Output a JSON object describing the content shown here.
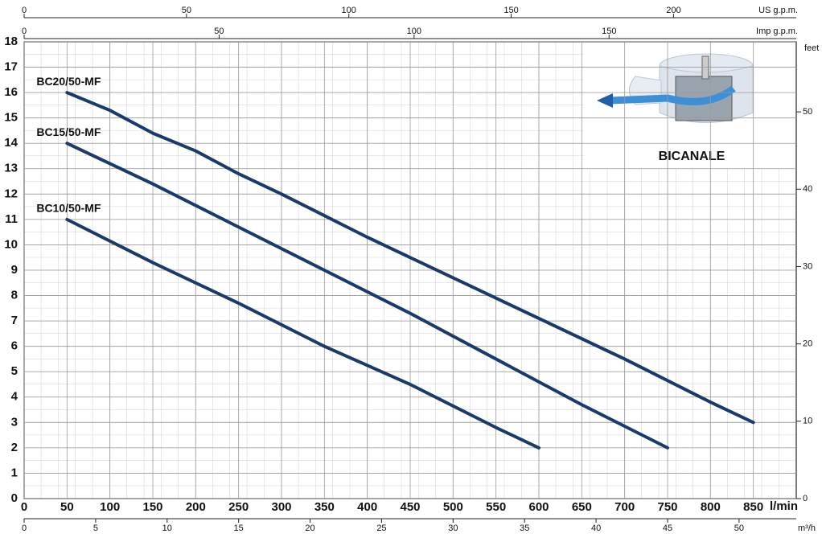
{
  "chart_data": {
    "type": "line",
    "xlabel": "l/min",
    "xlim": [
      0,
      900
    ],
    "xticks": [
      0,
      50,
      100,
      150,
      200,
      250,
      300,
      350,
      400,
      450,
      500,
      550,
      600,
      650,
      700,
      750,
      800,
      850
    ],
    "ylim": [
      0,
      18
    ],
    "yticks": [
      0,
      1,
      2,
      3,
      4,
      5,
      6,
      7,
      8,
      9,
      10,
      11,
      12,
      13,
      14,
      15,
      16,
      17,
      18
    ],
    "y2label": "feet",
    "y2lim": [
      0,
      59.055
    ],
    "y2ticks": [
      0,
      10,
      20,
      30,
      40,
      50
    ],
    "grid": true,
    "extra_x_axes": [
      {
        "label": "US g.p.m.",
        "lim": [
          0,
          237.8
        ],
        "ticks": [
          0,
          50,
          100,
          150,
          200
        ]
      },
      {
        "label": "Imp g.p.m.",
        "lim": [
          0,
          198
        ],
        "ticks": [
          0,
          50,
          100,
          150
        ]
      },
      {
        "label": "m³/h",
        "lim": [
          0,
          54
        ],
        "ticks": [
          0,
          5,
          10,
          15,
          20,
          25,
          30,
          35,
          40,
          45,
          50
        ]
      }
    ],
    "inset_label": "BICANALE",
    "series": [
      {
        "name": "BC20/50-MF",
        "color": "#1b3a6c",
        "x": [
          50,
          100,
          150,
          200,
          250,
          300,
          400,
          500,
          600,
          700,
          800,
          850
        ],
        "values": [
          16,
          15.3,
          14.4,
          13.7,
          12.8,
          12.0,
          10.3,
          8.7,
          7.1,
          5.5,
          3.8,
          3.0
        ]
      },
      {
        "name": "BC15/50-MF",
        "color": "#1b3a6c",
        "x": [
          50,
          150,
          250,
          350,
          450,
          550,
          650,
          750
        ],
        "values": [
          14,
          12.4,
          10.7,
          9.0,
          7.3,
          5.5,
          3.7,
          2
        ]
      },
      {
        "name": "BC10/50-MF",
        "color": "#1b3a6c",
        "x": [
          50,
          150,
          250,
          350,
          450,
          550,
          600
        ],
        "values": [
          11,
          9.3,
          7.7,
          6.0,
          4.5,
          2.8,
          2
        ]
      }
    ]
  }
}
